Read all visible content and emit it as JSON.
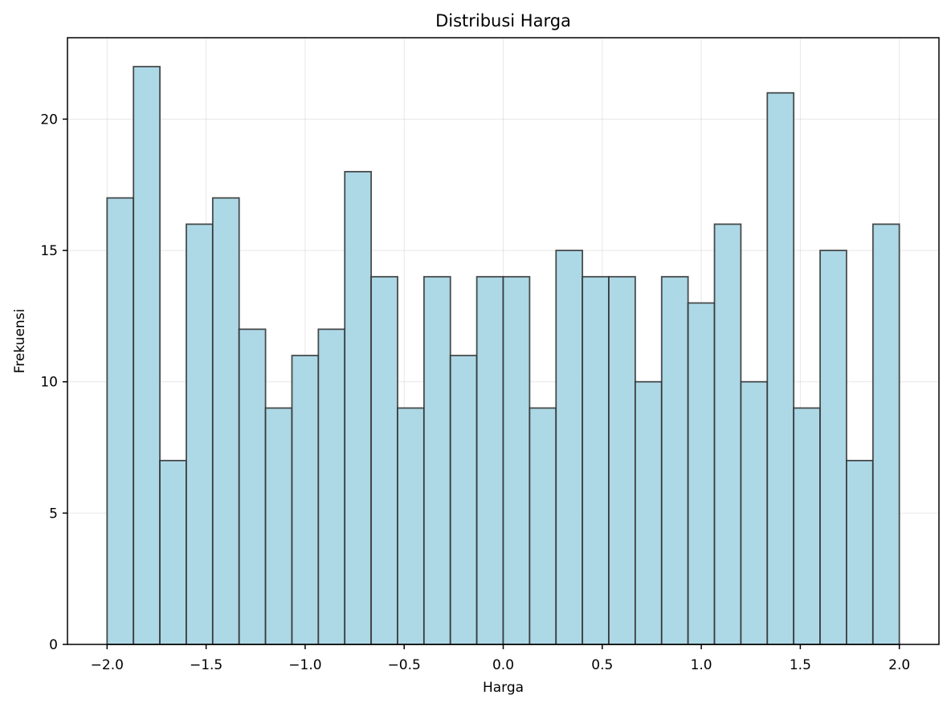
{
  "chart_data": {
    "type": "bar",
    "title": "Distribusi Harga",
    "xlabel": "Harga",
    "ylabel": "Frekuensi",
    "bin_range": [
      -2.0,
      2.0
    ],
    "bins": 30,
    "values": [
      17,
      22,
      7,
      16,
      17,
      12,
      9,
      11,
      12,
      18,
      14,
      9,
      14,
      11,
      14,
      14,
      9,
      15,
      14,
      14,
      10,
      14,
      13,
      16,
      10,
      21,
      9,
      15,
      7,
      16
    ],
    "xlim": [
      -2.2,
      2.2
    ],
    "ylim": [
      0,
      23.1
    ],
    "x_ticks": [
      -2.0,
      -1.5,
      -1.0,
      -0.5,
      0.0,
      0.5,
      1.0,
      1.5,
      2.0
    ],
    "x_tick_labels": [
      "−2.0",
      "−1.5",
      "−1.0",
      "−0.5",
      "0.0",
      "0.5",
      "1.0",
      "1.5",
      "2.0"
    ],
    "y_ticks": [
      0,
      5,
      10,
      15,
      20
    ],
    "y_tick_labels": [
      "0",
      "5",
      "10",
      "15",
      "20"
    ],
    "grid": true,
    "colors": {
      "bar_fill": "#add8e6",
      "bar_edge": "#2f2f2f"
    }
  }
}
